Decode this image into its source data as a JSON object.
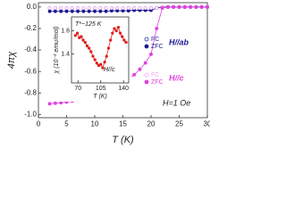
{
  "chart_data": [
    {
      "type": "line",
      "x_label": "T (K)",
      "y_label": "4πχ",
      "x": [
        2,
        3,
        4,
        5,
        6,
        7,
        8,
        9,
        10,
        11,
        12,
        13,
        14,
        15,
        16,
        17,
        18,
        19,
        20,
        21,
        22,
        23,
        24,
        25,
        26,
        27,
        28,
        29,
        30
      ],
      "xlim": [
        0,
        30
      ],
      "xticks": [
        0,
        5,
        10,
        15,
        20,
        25,
        30
      ],
      "ylim": [
        -1.03,
        0.04
      ],
      "yticks": [
        {
          "value": 0,
          "label": "0.0"
        },
        -0.2,
        -0.4,
        -0.6,
        -0.8,
        {
          "value": -1,
          "label": "-1.0"
        }
      ],
      "series": [
        {
          "name": "FC",
          "group": 0,
          "marker": "open",
          "color": "#2a2aa8",
          "values": [
            -0.01,
            -0.01,
            -0.01,
            -0.01,
            -0.01,
            -0.01,
            -0.01,
            -0.01,
            -0.01,
            -0.01,
            -0.01,
            -0.01,
            -0.01,
            -0.01,
            -0.01,
            -0.01,
            -0.01,
            -0.01,
            -0.01,
            -0.01,
            0,
            0,
            0,
            0,
            0,
            0,
            0,
            0,
            0
          ]
        },
        {
          "name": "ZFC",
          "group": 0,
          "marker": "filled",
          "color": "#1a1a90",
          "values": [
            -0.04,
            -0.04,
            -0.04,
            -0.04,
            -0.04,
            -0.04,
            -0.04,
            -0.04,
            -0.04,
            -0.04,
            -0.04,
            -0.035,
            -0.035,
            -0.035,
            -0.035,
            -0.03,
            -0.03,
            -0.03,
            -0.03,
            -0.01,
            0,
            0,
            0,
            0,
            0,
            0,
            0,
            0,
            0
          ]
        },
        {
          "name": "FC",
          "group": 1,
          "marker": "open",
          "color": "#f0a8f0",
          "values": [
            -0.01,
            -0.01,
            -0.01,
            -0.01,
            -0.01,
            -0.01,
            -0.01,
            -0.01,
            -0.01,
            -0.01,
            -0.01,
            -0.01,
            -0.01,
            -0.01,
            -0.01,
            -0.01,
            -0.01,
            -0.01,
            -0.01,
            -0.01,
            0,
            0,
            0,
            0,
            0,
            0,
            0,
            0,
            0
          ]
        },
        {
          "name": "ZFC",
          "group": 1,
          "marker": "filled",
          "color": "#e040e0",
          "values": [
            -0.9,
            -0.895,
            -0.89,
            -0.885,
            -0.875,
            -0.865,
            -0.85,
            -0.835,
            -0.82,
            -0.8,
            -0.78,
            -0.76,
            -0.73,
            -0.7,
            -0.67,
            -0.63,
            -0.58,
            -0.52,
            -0.44,
            -0.2,
            -0.01,
            0,
            0,
            0,
            0,
            0,
            0,
            0,
            0
          ]
        }
      ],
      "legend_groups": [
        {
          "label": "H//ab",
          "color": "#1a1a90"
        },
        {
          "label": "H//c",
          "color": "#e040e0"
        }
      ],
      "annotation": "H=1 Oe"
    },
    {
      "type": "line",
      "title": "T*~125 K",
      "x_label": "T (K)",
      "y_label": "χ (10⁻³ emu/mol)",
      "annotation": "H//c",
      "x": [
        66,
        69,
        72,
        75,
        78,
        81,
        84,
        87,
        90,
        93,
        96,
        99,
        102,
        105,
        108,
        111,
        114,
        117,
        120,
        123,
        126,
        129,
        132,
        135,
        138,
        141,
        144
      ],
      "xlim": [
        60,
        148
      ],
      "xticks": [
        70,
        105,
        140
      ],
      "ylim": [
        1.15,
        1.72
      ],
      "yticks": [
        1.4,
        1.6
      ],
      "series": [
        {
          "name": "H//c",
          "marker": "filled",
          "color": "#e02020",
          "values": [
            1.56,
            1.58,
            1.54,
            1.55,
            1.52,
            1.5,
            1.47,
            1.45,
            1.42,
            1.38,
            1.35,
            1.32,
            1.3,
            1.31,
            1.28,
            1.33,
            1.38,
            1.45,
            1.52,
            1.58,
            1.62,
            1.6,
            1.63,
            1.58,
            1.55,
            1.52,
            1.5
          ]
        }
      ]
    }
  ]
}
